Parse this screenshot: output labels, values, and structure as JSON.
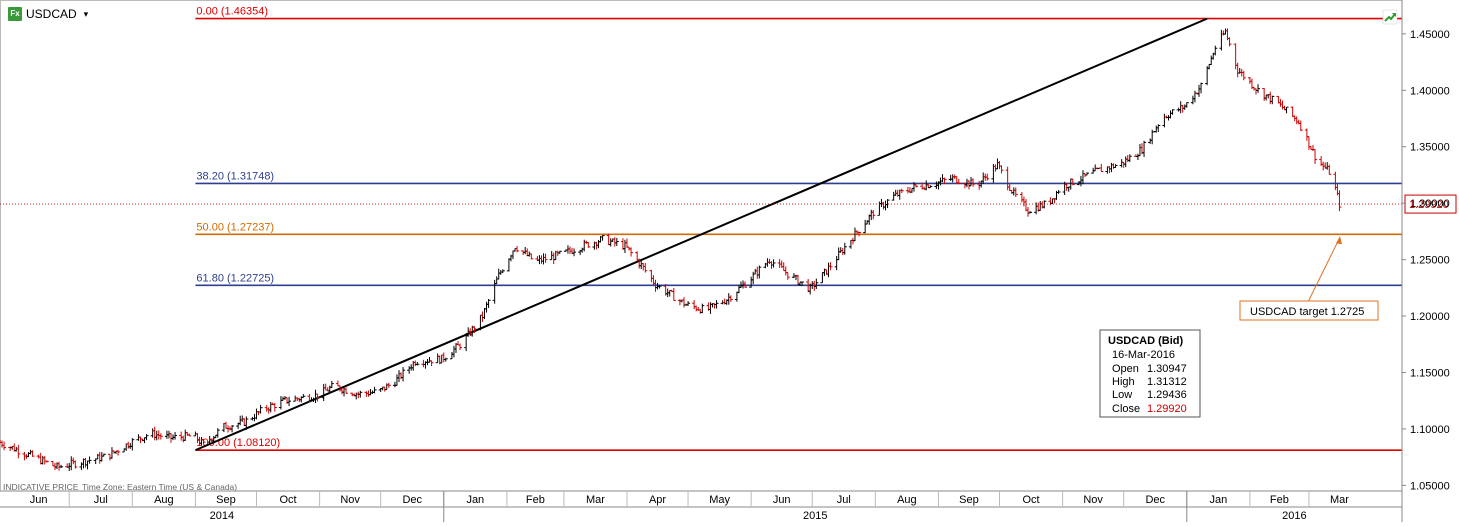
{
  "header": {
    "symbol": "USDCAD",
    "fx_badge": "Fx",
    "dropdown_glyph": "▾"
  },
  "footer": {
    "indicative": "INDICATIVE PRICE",
    "timezone": "Time Zone: Eastern Time (US & Canada)"
  },
  "colors": {
    "up": "#000000",
    "down": "#cc0000",
    "fib_red": "#dd0000",
    "fib_blue": "#2e3f8f",
    "fib_orange": "#d26a00",
    "trend": "#000000",
    "accent_green": "#2c9c2c"
  },
  "fib_levels": [
    {
      "label": "0.00 (1.46354)",
      "value": 1.46354,
      "color": "#dd0000"
    },
    {
      "label": "38.20 (1.31748)",
      "value": 1.31748,
      "color": "#2e3f8f"
    },
    {
      "label": "50.00 (1.27237)",
      "value": 1.27237,
      "color": "#d26a00"
    },
    {
      "label": "61.80 (1.22725)",
      "value": 1.22725,
      "color": "#2e3f8f"
    },
    {
      "label": "100.00 (1.08120)",
      "value": 1.0812,
      "color": "#dd0000"
    }
  ],
  "last_price": {
    "label": "1.29920",
    "value": 1.2992
  },
  "target_annotation": {
    "text": "USDCAD target 1.2725",
    "value": 1.2725
  },
  "info_box": {
    "title": "USDCAD (Bid)",
    "date": "16-Mar-2016",
    "rows": [
      {
        "k": "Open",
        "v": "1.30947"
      },
      {
        "k": "High",
        "v": "1.31312"
      },
      {
        "k": "Low",
        "v": "1.29436"
      },
      {
        "k": "Close",
        "v": "1.29920"
      }
    ]
  },
  "chart_data": {
    "type": "ohlc",
    "title": "",
    "xlabel": "",
    "ylabel": "",
    "ylim": [
      1.045,
      1.48
    ],
    "y_ticks": [
      "1.05000",
      "1.10000",
      "1.15000",
      "1.20000",
      "1.25000",
      "1.30000",
      "1.35000",
      "1.40000",
      "1.45000"
    ],
    "x_months": [
      "Jun",
      "Jul",
      "Aug",
      "Sep",
      "Oct",
      "Nov",
      "Dec",
      "Jan",
      "Feb",
      "Mar",
      "Apr",
      "May",
      "Jun",
      "Jul",
      "Aug",
      "Sep",
      "Oct",
      "Nov",
      "Dec",
      "Jan",
      "Feb",
      "Mar"
    ],
    "x_years": [
      "2014",
      "2015",
      "2016"
    ],
    "x_range": [
      "2014-05-28",
      "2016-03-31"
    ],
    "trendline": {
      "start": {
        "date": "2014-09-01",
        "value": 1.0812
      },
      "end": {
        "date": "2016-01-11",
        "value": 1.4635
      }
    },
    "close_path": [
      [
        "2014-05-28",
        1.088
      ],
      [
        "2014-06-15",
        1.074
      ],
      [
        "2014-06-25",
        1.066
      ],
      [
        "2014-07-10",
        1.072
      ],
      [
        "2014-07-20",
        1.076
      ],
      [
        "2014-07-31",
        1.088
      ],
      [
        "2014-08-10",
        1.096
      ],
      [
        "2014-08-20",
        1.092
      ],
      [
        "2014-08-31",
        1.094
      ],
      [
        "2014-09-05",
        1.086
      ],
      [
        "2014-09-15",
        1.102
      ],
      [
        "2014-09-25",
        1.106
      ],
      [
        "2014-10-05",
        1.118
      ],
      [
        "2014-10-15",
        1.125
      ],
      [
        "2014-10-31",
        1.13
      ],
      [
        "2014-11-08",
        1.138
      ],
      [
        "2014-11-20",
        1.131
      ],
      [
        "2014-11-30",
        1.133
      ],
      [
        "2014-12-08",
        1.142
      ],
      [
        "2014-12-18",
        1.16
      ],
      [
        "2014-12-31",
        1.162
      ],
      [
        "2015-01-10",
        1.176
      ],
      [
        "2015-01-20",
        1.2
      ],
      [
        "2015-01-28",
        1.236
      ],
      [
        "2015-02-05",
        1.262
      ],
      [
        "2015-02-15",
        1.248
      ],
      [
        "2015-02-28",
        1.255
      ],
      [
        "2015-03-10",
        1.262
      ],
      [
        "2015-03-20",
        1.268
      ],
      [
        "2015-03-31",
        1.262
      ],
      [
        "2015-04-08",
        1.245
      ],
      [
        "2015-04-15",
        1.228
      ],
      [
        "2015-04-30",
        1.21
      ],
      [
        "2015-05-10",
        1.205
      ],
      [
        "2015-05-20",
        1.215
      ],
      [
        "2015-05-31",
        1.232
      ],
      [
        "2015-06-10",
        1.25
      ],
      [
        "2015-06-20",
        1.236
      ],
      [
        "2015-06-30",
        1.224
      ],
      [
        "2015-07-08",
        1.24
      ],
      [
        "2015-07-20",
        1.268
      ],
      [
        "2015-07-31",
        1.292
      ],
      [
        "2015-08-10",
        1.306
      ],
      [
        "2015-08-20",
        1.314
      ],
      [
        "2015-08-31",
        1.318
      ],
      [
        "2015-09-08",
        1.322
      ],
      [
        "2015-09-20",
        1.316
      ],
      [
        "2015-09-30",
        1.334
      ],
      [
        "2015-10-08",
        1.308
      ],
      [
        "2015-10-15",
        1.294
      ],
      [
        "2015-10-25",
        1.3
      ],
      [
        "2015-10-31",
        1.314
      ],
      [
        "2015-11-10",
        1.322
      ],
      [
        "2015-11-20",
        1.33
      ],
      [
        "2015-11-30",
        1.335
      ],
      [
        "2015-12-10",
        1.348
      ],
      [
        "2015-12-20",
        1.376
      ],
      [
        "2015-12-31",
        1.386
      ],
      [
        "2016-01-08",
        1.404
      ],
      [
        "2016-01-15",
        1.438
      ],
      [
        "2016-01-20",
        1.452
      ],
      [
        "2016-01-26",
        1.418
      ],
      [
        "2016-02-05",
        1.4
      ],
      [
        "2016-02-15",
        1.388
      ],
      [
        "2016-02-25",
        1.372
      ],
      [
        "2016-03-05",
        1.338
      ],
      [
        "2016-03-12",
        1.326
      ],
      [
        "2016-03-16",
        1.2992
      ]
    ]
  }
}
